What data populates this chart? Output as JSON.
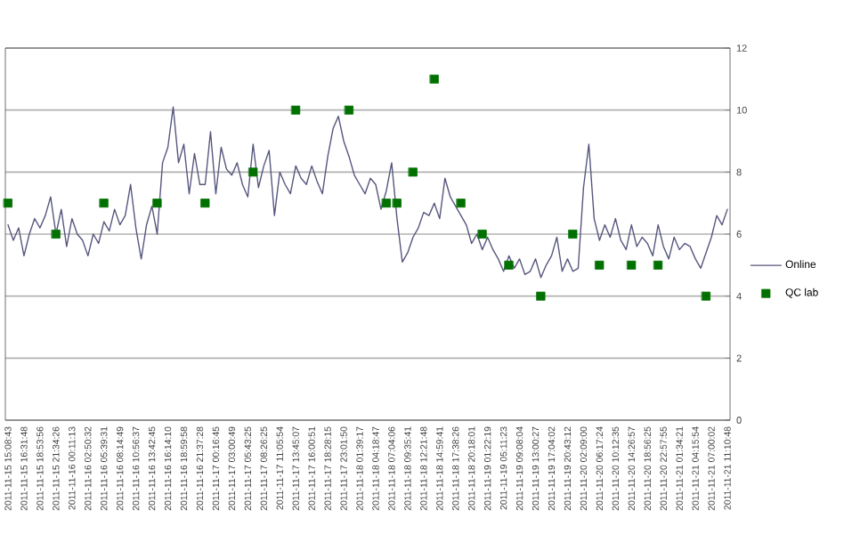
{
  "chart_data": {
    "type": "line",
    "categories": [
      "2011-11-15 15:08:43",
      null,
      null,
      "2011-11-15 16:31:48",
      null,
      null,
      "2011-11-15 18:53:56",
      null,
      null,
      "2011-11-15 21:34:26",
      null,
      null,
      "2011-11-16 00:11:13",
      null,
      null,
      "2011-11-16 02:50:32",
      null,
      null,
      "2011-11-16 05:39:31",
      null,
      null,
      "2011-11-16 08:14:49",
      null,
      null,
      "2011-11-16 10:56:37",
      null,
      null,
      "2011-11-16 13:42:45",
      null,
      null,
      "2011-11-16 16:14:10",
      null,
      null,
      "2011-11-16 18:59:58",
      null,
      null,
      "2011-11-16 21:37:28",
      null,
      null,
      "2011-11-17 00:16:45",
      null,
      null,
      "2011-11-17 03:00:49",
      null,
      null,
      "2011-11-17 05:43:25",
      null,
      null,
      "2011-11-17 08:26:25",
      null,
      null,
      "2011-11-17 11:05:54",
      null,
      null,
      "2011-11-17 13:45:07",
      null,
      null,
      "2011-11-17 16:00:51",
      null,
      null,
      "2011-11-17 18:28:15",
      null,
      null,
      "2011-11-17 23:01:50",
      null,
      null,
      "2011-11-18 01:39:17",
      null,
      null,
      "2011-11-18 04:18:47",
      null,
      null,
      "2011-11-18 07:04:06",
      null,
      null,
      "2011-11-18 09:35:41",
      null,
      null,
      "2011-11-18 12:21:48",
      null,
      null,
      "2011-11-18 14:59:41",
      null,
      null,
      "2011-11-18 17:38:26",
      null,
      null,
      "2011-11-18 20:18:01",
      null,
      null,
      "2011-11-19 01:22:19",
      null,
      null,
      "2011-11-19 05:11:23",
      null,
      null,
      "2011-11-19 09:08:04",
      null,
      null,
      "2011-11-19 13:00:27",
      null,
      null,
      "2011-11-19 17:04:02",
      null,
      null,
      "2011-11-19 20:43:12",
      null,
      null,
      "2011-11-20 02:09:00",
      null,
      null,
      "2011-11-20 06:17:24",
      null,
      null,
      "2011-11-20 10:12:35",
      null,
      null,
      "2011-11-20 14:26:57",
      null,
      null,
      "2011-11-20 18:56:25",
      null,
      null,
      "2011-11-20 22:57:55",
      null,
      null,
      "2011-11-21 01:34:21",
      null,
      null,
      "2011-11-21 04:15:54",
      null,
      null,
      "2011-11-21 07:00:02",
      null,
      null,
      "2011-11-21 11:10:48"
    ],
    "series": [
      {
        "name": "Online",
        "color": "#56567e",
        "values": [
          6.3,
          5.8,
          6.2,
          5.3,
          6.0,
          6.5,
          6.2,
          6.6,
          7.2,
          6.0,
          6.8,
          5.6,
          6.5,
          6.0,
          5.8,
          5.3,
          6.0,
          5.7,
          6.4,
          6.1,
          6.8,
          6.3,
          6.6,
          7.6,
          6.2,
          5.2,
          6.3,
          6.9,
          6.0,
          8.3,
          8.8,
          10.1,
          8.3,
          8.9,
          7.3,
          8.6,
          7.6,
          7.6,
          9.3,
          7.3,
          8.8,
          8.1,
          7.9,
          8.3,
          7.6,
          7.2,
          8.9,
          7.5,
          8.2,
          8.7,
          6.6,
          8.0,
          7.6,
          7.3,
          8.2,
          7.8,
          7.6,
          8.2,
          7.7,
          7.3,
          8.5,
          9.4,
          9.8,
          9.0,
          8.5,
          7.9,
          7.6,
          7.3,
          7.8,
          7.6,
          6.8,
          7.4,
          8.3,
          6.5,
          5.1,
          5.4,
          5.9,
          6.2,
          6.7,
          6.6,
          7.0,
          6.5,
          7.8,
          7.2,
          6.9,
          6.6,
          6.3,
          5.7,
          6.0,
          5.5,
          5.9,
          5.5,
          5.2,
          4.8,
          5.3,
          4.9,
          5.2,
          4.7,
          4.8,
          5.2,
          4.6,
          5.0,
          5.3,
          5.9,
          4.8,
          5.2,
          4.8,
          4.9,
          7.5,
          8.9,
          6.5,
          5.8,
          6.3,
          5.9,
          6.5,
          5.8,
          5.5,
          6.3,
          5.6,
          5.9,
          5.7,
          5.3,
          6.3,
          5.6,
          5.2,
          5.9,
          5.5,
          5.7,
          5.6,
          5.2,
          4.9,
          5.4,
          5.9,
          6.6,
          6.3,
          6.8
        ]
      },
      {
        "name": "QC lab",
        "type": "scatter",
        "marker": "square",
        "color": "#007000",
        "values": [
          7,
          null,
          null,
          null,
          null,
          null,
          null,
          null,
          null,
          6,
          null,
          null,
          null,
          null,
          null,
          null,
          null,
          null,
          7,
          null,
          null,
          null,
          null,
          null,
          null,
          null,
          null,
          null,
          7,
          null,
          null,
          null,
          null,
          null,
          null,
          null,
          null,
          7,
          null,
          null,
          null,
          null,
          null,
          null,
          null,
          null,
          8,
          null,
          null,
          null,
          null,
          null,
          null,
          null,
          10,
          null,
          null,
          null,
          null,
          null,
          null,
          null,
          null,
          null,
          10,
          null,
          null,
          null,
          null,
          null,
          null,
          7,
          null,
          7,
          null,
          null,
          8,
          null,
          null,
          null,
          11,
          null,
          null,
          null,
          null,
          7,
          null,
          null,
          null,
          6,
          null,
          null,
          null,
          null,
          5,
          null,
          null,
          null,
          null,
          null,
          4,
          null,
          null,
          null,
          null,
          null,
          6,
          null,
          null,
          null,
          null,
          5,
          null,
          null,
          null,
          null,
          null,
          5,
          null,
          null,
          null,
          null,
          5,
          null,
          null,
          null,
          null,
          null,
          null,
          null,
          null,
          4,
          null,
          null,
          null,
          null
        ]
      }
    ],
    "ylim": [
      0,
      12
    ],
    "yticks": [
      0,
      2,
      4,
      6,
      8,
      10,
      12
    ],
    "grid": "y",
    "legend": "right"
  }
}
